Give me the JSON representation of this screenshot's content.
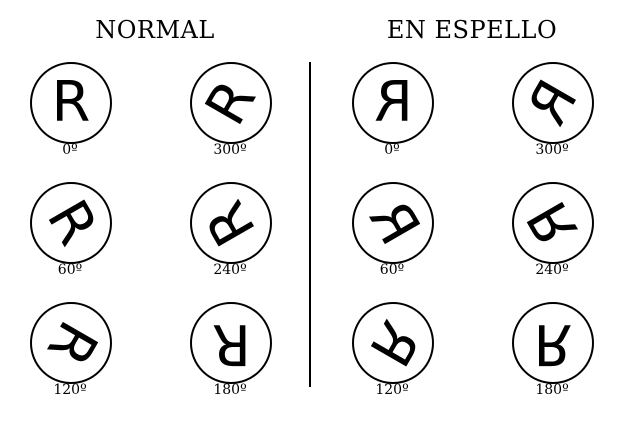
{
  "headers": {
    "normal": "NORMAL",
    "mirror": "EN ESPELLO"
  },
  "glyph": "R",
  "normal": {
    "left_column": [
      {
        "rotation_deg": 0,
        "label": "0º"
      },
      {
        "rotation_deg": 60,
        "label": "60º"
      },
      {
        "rotation_deg": 120,
        "label": "120º"
      }
    ],
    "right_column": [
      {
        "rotation_deg": 300,
        "label": "300º"
      },
      {
        "rotation_deg": 240,
        "label": "240º"
      },
      {
        "rotation_deg": 180,
        "label": "180º"
      }
    ]
  },
  "mirror": {
    "left_column": [
      {
        "rotation_deg": 0,
        "label": "0º"
      },
      {
        "rotation_deg": 60,
        "label": "60º"
      },
      {
        "rotation_deg": 120,
        "label": "120º"
      }
    ],
    "right_column": [
      {
        "rotation_deg": 300,
        "label": "300º"
      },
      {
        "rotation_deg": 240,
        "label": "240º"
      },
      {
        "rotation_deg": 180,
        "label": "180º"
      }
    ]
  }
}
